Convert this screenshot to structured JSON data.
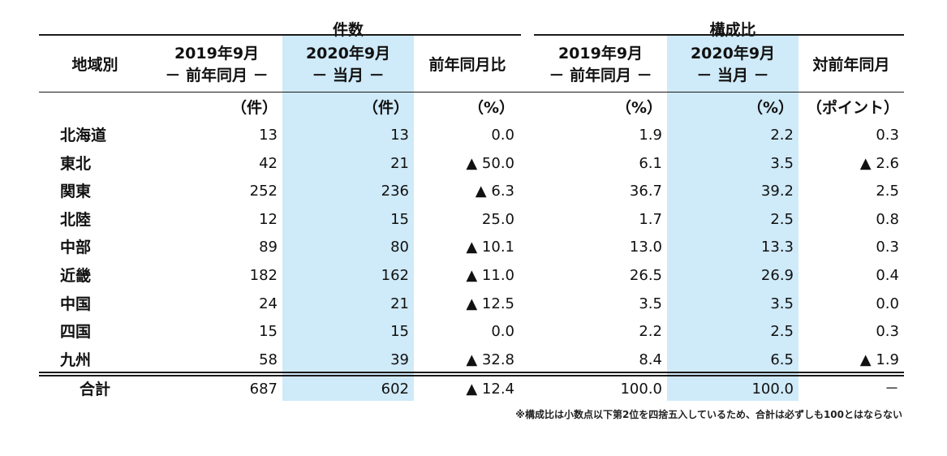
{
  "group_headers": {
    "count": "件数",
    "composition": "構成比"
  },
  "column_headers": {
    "region": "地域別",
    "c2019_line1": "2019年9月",
    "c2019_line2": "－ 前年同月 －",
    "c2020_line1": "2020年9月",
    "c2020_line2": "－ 当月 －",
    "yoy": "前年同月比",
    "p2019_line1": "2019年9月",
    "p2019_line2": "－ 前年同月 －",
    "p2020_line1": "2020年9月",
    "p2020_line2": "－ 当月 －",
    "pyoy": "対前年同月"
  },
  "units": {
    "c2019": "（件）",
    "c2020": "（件）",
    "yoy": "（%）",
    "p2019": "（%）",
    "p2020": "（%）",
    "pyoy": "（ポイント）"
  },
  "rows": [
    {
      "region": "北海道",
      "c2019": "13",
      "c2020": "13",
      "yoy": "0.0",
      "p2019": "1.9",
      "p2020": "2.2",
      "pyoy": "0.3"
    },
    {
      "region": "東北",
      "c2019": "42",
      "c2020": "21",
      "yoy": "▲ 50.0",
      "p2019": "6.1",
      "p2020": "3.5",
      "pyoy": "▲ 2.6"
    },
    {
      "region": "関東",
      "c2019": "252",
      "c2020": "236",
      "yoy": "▲ 6.3",
      "p2019": "36.7",
      "p2020": "39.2",
      "pyoy": "2.5"
    },
    {
      "region": "北陸",
      "c2019": "12",
      "c2020": "15",
      "yoy": "25.0",
      "p2019": "1.7",
      "p2020": "2.5",
      "pyoy": "0.8"
    },
    {
      "region": "中部",
      "c2019": "89",
      "c2020": "80",
      "yoy": "▲ 10.1",
      "p2019": "13.0",
      "p2020": "13.3",
      "pyoy": "0.3"
    },
    {
      "region": "近畿",
      "c2019": "182",
      "c2020": "162",
      "yoy": "▲ 11.0",
      "p2019": "26.5",
      "p2020": "26.9",
      "pyoy": "0.4"
    },
    {
      "region": "中国",
      "c2019": "24",
      "c2020": "21",
      "yoy": "▲ 12.5",
      "p2019": "3.5",
      "p2020": "3.5",
      "pyoy": "0.0"
    },
    {
      "region": "四国",
      "c2019": "15",
      "c2020": "15",
      "yoy": "0.0",
      "p2019": "2.2",
      "p2020": "2.5",
      "pyoy": "0.3"
    },
    {
      "region": "九州",
      "c2019": "58",
      "c2020": "39",
      "yoy": "▲ 32.8",
      "p2019": "8.4",
      "p2020": "6.5",
      "pyoy": "▲ 1.9"
    }
  ],
  "total": {
    "region": "合計",
    "c2019": "687",
    "c2020": "602",
    "yoy": "▲ 12.4",
    "p2019": "100.0",
    "p2020": "100.0",
    "pyoy": "－"
  },
  "footnote": "※構成比は小数点以下第2位を四捨五入しているため、合計は必ずしも100とはならない",
  "colors": {
    "highlight": "#cfeaf8",
    "rule": "#1a1a1a"
  }
}
